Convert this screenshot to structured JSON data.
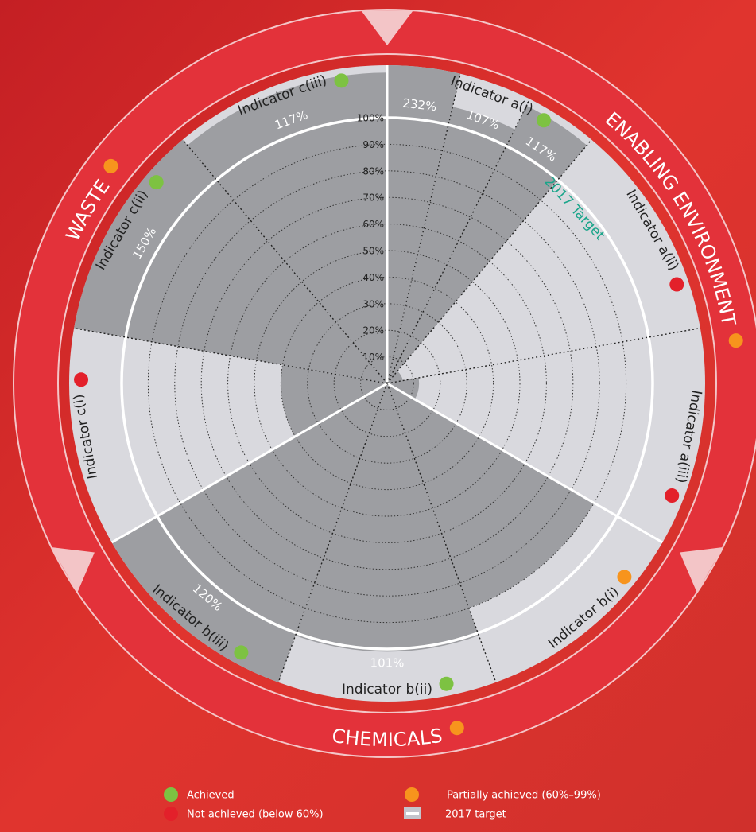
{
  "chart_data": {
    "type": "polar",
    "rlim": [
      0,
      100
    ],
    "rticks": [
      {
        "value": 10,
        "label": "10%"
      },
      {
        "value": 20,
        "label": "20%"
      },
      {
        "value": 30,
        "label": "30%"
      },
      {
        "value": 40,
        "label": "40%"
      },
      {
        "value": 50,
        "label": "50%"
      },
      {
        "value": 60,
        "label": "60%"
      },
      {
        "value": 70,
        "label": "70%"
      },
      {
        "value": 80,
        "label": "80%"
      },
      {
        "value": 90,
        "label": "90%"
      },
      {
        "value": 100,
        "label": "100%"
      }
    ],
    "target": 100,
    "target_annotation": "2017 Target",
    "bar_color": "#9d9ea2",
    "groups": [
      {
        "name": "ENABLING ENVIRONMENT",
        "status": "Partially achieved (60%–99%)",
        "indicators": [
          {
            "name": "Indicator a(i)",
            "status": "Achieved",
            "values": [
              232,
              107,
              117
            ],
            "value_labels": [
              "232%",
              "107%",
              "117%"
            ]
          },
          {
            "name": "Indicator a(ii)",
            "status": "Not achieved (below 60%)",
            "values": [
              6
            ]
          },
          {
            "name": "Indicator a(iii)",
            "status": "Not achieved (below 60%)",
            "values": [
              12
            ]
          }
        ]
      },
      {
        "name": "CHEMICALS",
        "status": "Partially achieved (60%–99%)",
        "indicators": [
          {
            "name": "Indicator b(i)",
            "status": "Partially achieved (60%–99%)",
            "values": [
              90
            ]
          },
          {
            "name": "Indicator b(ii)",
            "status": "Achieved",
            "values": [
              101
            ],
            "value_labels": [
              "101%"
            ]
          },
          {
            "name": "Indicator b(iii)",
            "status": "Achieved",
            "values": [
              120
            ],
            "value_labels": [
              "120%"
            ]
          }
        ]
      },
      {
        "name": "WASTE",
        "status": "Partially achieved (60%–99%)",
        "indicators": [
          {
            "name": "Indicator c(i)",
            "status": "Not achieved (below 60%)",
            "values": [
              40
            ]
          },
          {
            "name": "Indicator c(ii)",
            "status": "Achieved",
            "values": [
              150
            ],
            "value_labels": [
              "150%"
            ]
          },
          {
            "name": "Indicator c(iii)",
            "status": "Achieved",
            "values": [
              117
            ],
            "value_labels": [
              "117%"
            ]
          }
        ]
      }
    ],
    "legend": [
      {
        "name": "Achieved",
        "color": "#7dc242"
      },
      {
        "name": "Partially achieved (60%–99%)",
        "color": "#f7941d"
      },
      {
        "name": "Not achieved (below 60%)",
        "color": "#e3202a"
      }
    ],
    "target_legend": "2017 target"
  }
}
